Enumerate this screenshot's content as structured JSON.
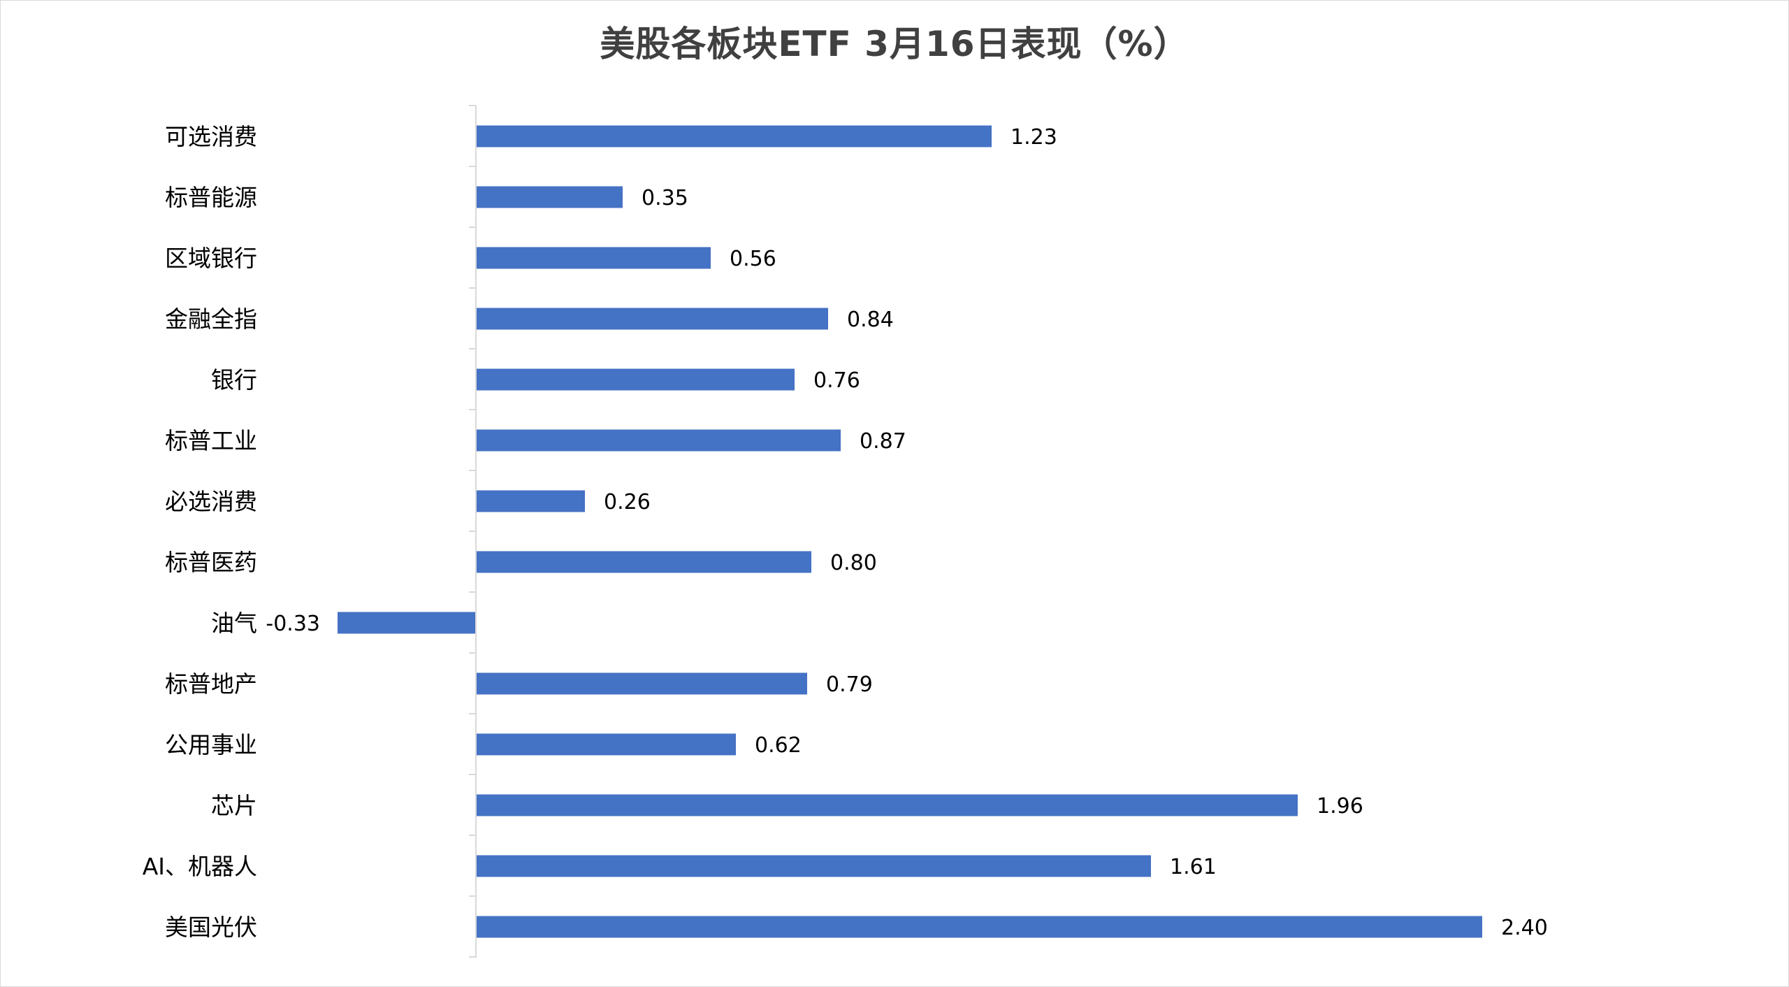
{
  "chart_data": {
    "type": "bar",
    "orientation": "horizontal",
    "title": "美股各板块ETF  3月16日表现（%）",
    "xlabel": "",
    "ylabel": "",
    "categories": [
      "可选消费",
      "标普能源",
      "区域银行",
      "金融全指",
      "银行",
      "标普工业",
      "必选消费",
      "标普医药",
      "油气",
      "标普地产",
      "公用事业",
      "芯片",
      "AI、机器人",
      "美国光伏"
    ],
    "values": [
      1.23,
      0.35,
      0.56,
      0.84,
      0.76,
      0.87,
      0.26,
      0.8,
      -0.33,
      0.79,
      0.62,
      1.96,
      1.61,
      2.4
    ],
    "value_labels": [
      "1.23",
      "0.35",
      "0.56",
      "0.84",
      "0.76",
      "0.87",
      "0.26",
      "0.80",
      "-0.33",
      "0.79",
      "0.62",
      "1.96",
      "1.61",
      "2.40"
    ],
    "xlim": [
      -0.33,
      2.4
    ],
    "grid": false,
    "legend": "none",
    "bar_color": "#4472C4",
    "axis_color": "#d9d9d9"
  }
}
